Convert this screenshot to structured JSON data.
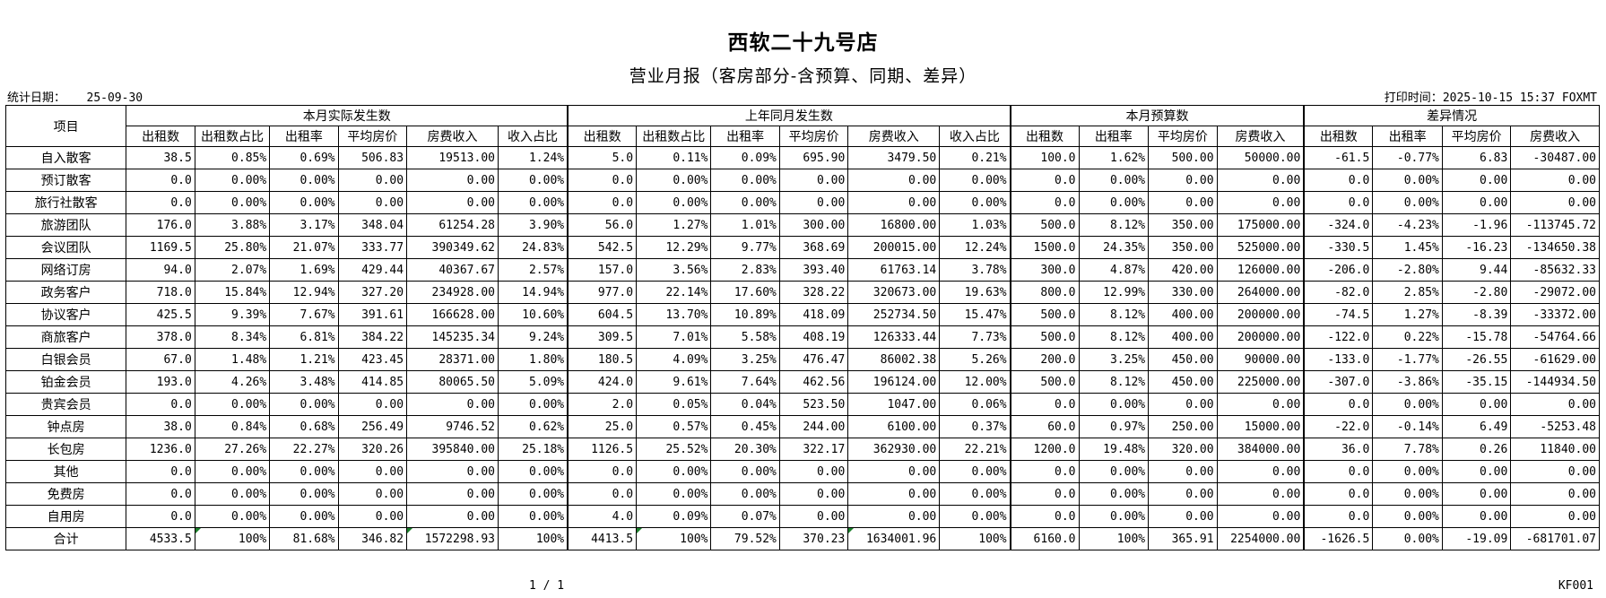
{
  "header": {
    "title": "西软二十九号店",
    "subtitle": "营业月报（客房部分-含预算、同期、差异）",
    "stat_date_label": "统计日期：",
    "stat_date": "25-09-30",
    "print_time_label": "打印时间：",
    "print_time": "2025-10-15 15:37 FOXMT"
  },
  "table": {
    "item_header": "项目",
    "groups": [
      "本月实际发生数",
      "上年同月发生数",
      "本月预算数",
      "差异情况"
    ],
    "columns": [
      [
        "出租数",
        "出租数占比",
        "出租率",
        "平均房价",
        "房费收入",
        "收入占比"
      ],
      [
        "出租数",
        "出租数占比",
        "出租率",
        "平均房价",
        "房费收入",
        "收入占比"
      ],
      [
        "出租数",
        "出租率",
        "平均房价",
        "房费收入"
      ],
      [
        "出租数",
        "出租率",
        "平均房价",
        "房费收入"
      ]
    ],
    "rows": [
      {
        "label": "自入散客",
        "values": [
          "38.5",
          "0.85%",
          "0.69%",
          "506.83",
          "19513.00",
          "1.24%",
          "5.0",
          "0.11%",
          "0.09%",
          "695.90",
          "3479.50",
          "0.21%",
          "100.0",
          "1.62%",
          "500.00",
          "50000.00",
          "-61.5",
          "-0.77%",
          "6.83",
          "-30487.00"
        ]
      },
      {
        "label": "预订散客",
        "values": [
          "0.0",
          "0.00%",
          "0.00%",
          "0.00",
          "0.00",
          "0.00%",
          "0.0",
          "0.00%",
          "0.00%",
          "0.00",
          "0.00",
          "0.00%",
          "0.0",
          "0.00%",
          "0.00",
          "0.00",
          "0.0",
          "0.00%",
          "0.00",
          "0.00"
        ]
      },
      {
        "label": "旅行社散客",
        "values": [
          "0.0",
          "0.00%",
          "0.00%",
          "0.00",
          "0.00",
          "0.00%",
          "0.0",
          "0.00%",
          "0.00%",
          "0.00",
          "0.00",
          "0.00%",
          "0.0",
          "0.00%",
          "0.00",
          "0.00",
          "0.0",
          "0.00%",
          "0.00",
          "0.00"
        ]
      },
      {
        "label": "旅游团队",
        "values": [
          "176.0",
          "3.88%",
          "3.17%",
          "348.04",
          "61254.28",
          "3.90%",
          "56.0",
          "1.27%",
          "1.01%",
          "300.00",
          "16800.00",
          "1.03%",
          "500.0",
          "8.12%",
          "350.00",
          "175000.00",
          "-324.0",
          "-4.23%",
          "-1.96",
          "-113745.72"
        ]
      },
      {
        "label": "会议团队",
        "values": [
          "1169.5",
          "25.80%",
          "21.07%",
          "333.77",
          "390349.62",
          "24.83%",
          "542.5",
          "12.29%",
          "9.77%",
          "368.69",
          "200015.00",
          "12.24%",
          "1500.0",
          "24.35%",
          "350.00",
          "525000.00",
          "-330.5",
          "1.45%",
          "-16.23",
          "-134650.38"
        ]
      },
      {
        "label": "网络订房",
        "values": [
          "94.0",
          "2.07%",
          "1.69%",
          "429.44",
          "40367.67",
          "2.57%",
          "157.0",
          "3.56%",
          "2.83%",
          "393.40",
          "61763.14",
          "3.78%",
          "300.0",
          "4.87%",
          "420.00",
          "126000.00",
          "-206.0",
          "-2.80%",
          "9.44",
          "-85632.33"
        ]
      },
      {
        "label": "政务客户",
        "values": [
          "718.0",
          "15.84%",
          "12.94%",
          "327.20",
          "234928.00",
          "14.94%",
          "977.0",
          "22.14%",
          "17.60%",
          "328.22",
          "320673.00",
          "19.63%",
          "800.0",
          "12.99%",
          "330.00",
          "264000.00",
          "-82.0",
          "2.85%",
          "-2.80",
          "-29072.00"
        ]
      },
      {
        "label": "协议客户",
        "values": [
          "425.5",
          "9.39%",
          "7.67%",
          "391.61",
          "166628.00",
          "10.60%",
          "604.5",
          "13.70%",
          "10.89%",
          "418.09",
          "252734.50",
          "15.47%",
          "500.0",
          "8.12%",
          "400.00",
          "200000.00",
          "-74.5",
          "1.27%",
          "-8.39",
          "-33372.00"
        ]
      },
      {
        "label": "商旅客户",
        "values": [
          "378.0",
          "8.34%",
          "6.81%",
          "384.22",
          "145235.34",
          "9.24%",
          "309.5",
          "7.01%",
          "5.58%",
          "408.19",
          "126333.44",
          "7.73%",
          "500.0",
          "8.12%",
          "400.00",
          "200000.00",
          "-122.0",
          "0.22%",
          "-15.78",
          "-54764.66"
        ]
      },
      {
        "label": "白银会员",
        "values": [
          "67.0",
          "1.48%",
          "1.21%",
          "423.45",
          "28371.00",
          "1.80%",
          "180.5",
          "4.09%",
          "3.25%",
          "476.47",
          "86002.38",
          "5.26%",
          "200.0",
          "3.25%",
          "450.00",
          "90000.00",
          "-133.0",
          "-1.77%",
          "-26.55",
          "-61629.00"
        ]
      },
      {
        "label": "铂金会员",
        "values": [
          "193.0",
          "4.26%",
          "3.48%",
          "414.85",
          "80065.50",
          "5.09%",
          "424.0",
          "9.61%",
          "7.64%",
          "462.56",
          "196124.00",
          "12.00%",
          "500.0",
          "8.12%",
          "450.00",
          "225000.00",
          "-307.0",
          "-3.86%",
          "-35.15",
          "-144934.50"
        ]
      },
      {
        "label": "贵宾会员",
        "values": [
          "0.0",
          "0.00%",
          "0.00%",
          "0.00",
          "0.00",
          "0.00%",
          "2.0",
          "0.05%",
          "0.04%",
          "523.50",
          "1047.00",
          "0.06%",
          "0.0",
          "0.00%",
          "0.00",
          "0.00",
          "0.0",
          "0.00%",
          "0.00",
          "0.00"
        ]
      },
      {
        "label": "钟点房",
        "values": [
          "38.0",
          "0.84%",
          "0.68%",
          "256.49",
          "9746.52",
          "0.62%",
          "25.0",
          "0.57%",
          "0.45%",
          "244.00",
          "6100.00",
          "0.37%",
          "60.0",
          "0.97%",
          "250.00",
          "15000.00",
          "-22.0",
          "-0.14%",
          "6.49",
          "-5253.48"
        ]
      },
      {
        "label": "长包房",
        "values": [
          "1236.0",
          "27.26%",
          "22.27%",
          "320.26",
          "395840.00",
          "25.18%",
          "1126.5",
          "25.52%",
          "20.30%",
          "322.17",
          "362930.00",
          "22.21%",
          "1200.0",
          "19.48%",
          "320.00",
          "384000.00",
          "36.0",
          "7.78%",
          "0.26",
          "11840.00"
        ]
      },
      {
        "label": "其他",
        "values": [
          "0.0",
          "0.00%",
          "0.00%",
          "0.00",
          "0.00",
          "0.00%",
          "0.0",
          "0.00%",
          "0.00%",
          "0.00",
          "0.00",
          "0.00%",
          "0.0",
          "0.00%",
          "0.00",
          "0.00",
          "0.0",
          "0.00%",
          "0.00",
          "0.00"
        ]
      },
      {
        "label": "免费房",
        "values": [
          "0.0",
          "0.00%",
          "0.00%",
          "0.00",
          "0.00",
          "0.00%",
          "0.0",
          "0.00%",
          "0.00%",
          "0.00",
          "0.00",
          "0.00%",
          "0.0",
          "0.00%",
          "0.00",
          "0.00",
          "0.0",
          "0.00%",
          "0.00",
          "0.00"
        ]
      },
      {
        "label": "自用房",
        "values": [
          "0.0",
          "0.00%",
          "0.00%",
          "0.00",
          "0.00",
          "0.00%",
          "4.0",
          "0.09%",
          "0.07%",
          "0.00",
          "0.00",
          "0.00%",
          "0.0",
          "0.00%",
          "0.00",
          "0.00",
          "0.0",
          "0.00%",
          "0.00",
          "0.00"
        ]
      }
    ],
    "total": {
      "label": "合计",
      "values": [
        "4533.5",
        "100%",
        "81.68%",
        "346.82",
        "1572298.93",
        "100%",
        "4413.5",
        "100%",
        "79.52%",
        "370.23",
        "1634001.96",
        "100%",
        "6160.0",
        "100%",
        "365.91",
        "2254000.00",
        "-1626.5",
        "0.00%",
        "-19.09",
        "-681701.07"
      ]
    },
    "marker_color": "#1a7f2a"
  },
  "footer": {
    "page": "1 / 1",
    "code": "KF001"
  }
}
